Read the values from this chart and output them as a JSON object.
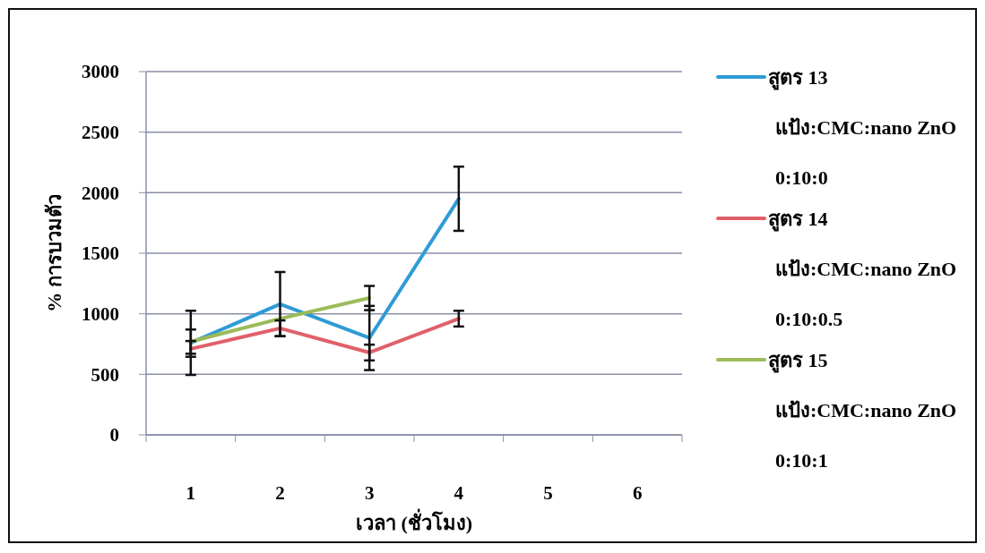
{
  "chart_data": {
    "type": "line",
    "xlabel": "เวลา (ชั่วโมง)",
    "ylabel": "% การบวมตัว",
    "categories": [
      "1",
      "2",
      "3",
      "4",
      "5",
      "6"
    ],
    "series": [
      {
        "name": "สูตร 13",
        "color": "#2e9bd6",
        "values": [
          760,
          1080,
          800,
          1950,
          null,
          null
        ],
        "errors": [
          265,
          265,
          265,
          265,
          null,
          null
        ]
      },
      {
        "name": "สูตร 14",
        "color": "#e0606a",
        "values": [
          710,
          880,
          680,
          960,
          null,
          null
        ],
        "errors": [
          65,
          65,
          65,
          65,
          null,
          null
        ]
      },
      {
        "name": "สูตร 15",
        "color": "#9bbb59",
        "values": [
          770,
          960,
          1130,
          null,
          null,
          null
        ],
        "errors": [
          100,
          null,
          100,
          null,
          null,
          null
        ]
      }
    ],
    "annotations": [
      "แป้ง:CMC:nano ZnO",
      "0:10:0",
      "แป้ง:CMC:nano ZnO",
      "0:10:0.5",
      "แป้ง:CMC:nano ZnO",
      "0:10:1"
    ],
    "ylim": [
      0,
      3000
    ],
    "yticks": [
      0,
      500,
      1000,
      1500,
      2000,
      2500,
      3000
    ],
    "grid": "y",
    "legend": "right",
    "marker": "none",
    "line_style": "solid"
  }
}
